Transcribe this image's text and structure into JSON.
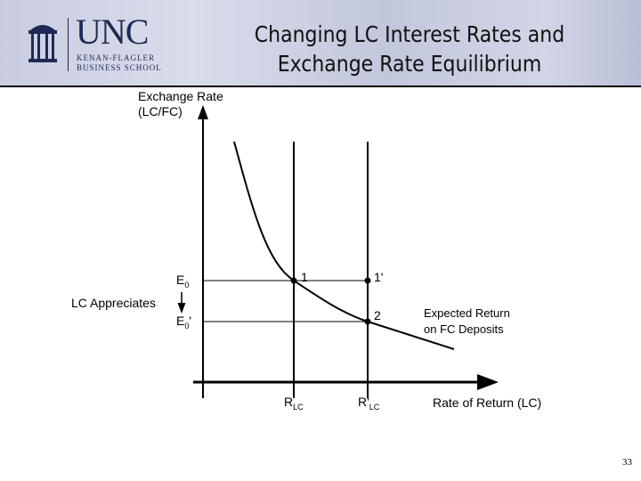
{
  "header": {
    "logo_text": "UNC",
    "logo_sub1": "KENAN-FLAGLER",
    "logo_sub2": "BUSINESS SCHOOL",
    "title_line1": "Changing LC Interest Rates and",
    "title_line2": "Exchange Rate Equilibrium"
  },
  "diagram": {
    "y_axis_label_1": "Exchange Rate",
    "y_axis_label_2": "(LC/FC)",
    "x_axis_label": "Rate of Return (LC)",
    "e0": "E",
    "e0_sub": "0",
    "e0p": "E",
    "e0p_sub": "0",
    "e0p_prime": "'",
    "lc_appreciates": "LC Appreciates",
    "point1": "1",
    "point1p": "1'",
    "point2": "2",
    "r_lc": "R",
    "r_lc_sub": "LC",
    "r_lc_prime": "R'",
    "r_lc_prime_sub": "LC",
    "curve_label_1": "Expected Return",
    "curve_label_2": "on FC Deposits"
  },
  "page_number": "33"
}
